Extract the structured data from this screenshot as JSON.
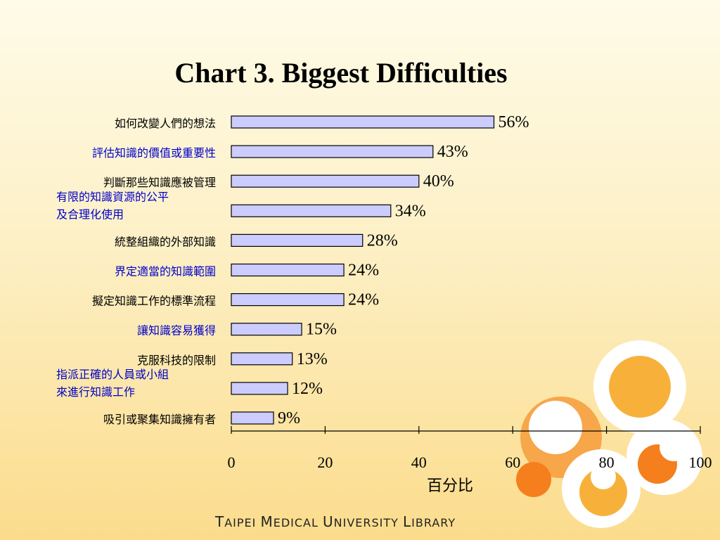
{
  "chart_data": {
    "type": "bar",
    "orientation": "horizontal",
    "title": "Chart 3. Biggest Difficulties",
    "xlabel": "百分比",
    "ylabel": "",
    "xlim": [
      0,
      100
    ],
    "xticks": [
      0,
      20,
      40,
      60,
      80,
      100
    ],
    "categories": [
      [
        "如何改變人們的想法"
      ],
      [
        "評估知識的價值或重要性"
      ],
      [
        "判斷那些知識應被管理"
      ],
      [
        "有限的知識資源的公平",
        "及合理化使用"
      ],
      [
        "統整組織的外部知識"
      ],
      [
        "界定適當的知識範圍"
      ],
      [
        "擬定知識工作的標準流程"
      ],
      [
        "讓知識容易獲得"
      ],
      [
        "克服科技的限制"
      ],
      [
        "指派正確的人員或小組",
        "來進行知識工作"
      ],
      [
        "吸引或聚集知識擁有者"
      ]
    ],
    "values": [
      56,
      43,
      40,
      34,
      28,
      24,
      24,
      15,
      13,
      12,
      9
    ],
    "value_labels": [
      "56%",
      "43%",
      "40%",
      "34%",
      "28%",
      "24%",
      "24%",
      "15%",
      "13%",
      "12%",
      "9%"
    ],
    "category_colors": [
      "#000000",
      "#0000cc",
      "#000000",
      "#0000cc",
      "#000000",
      "#0000cc",
      "#000000",
      "#0000cc",
      "#000000",
      "#0000cc",
      "#000000"
    ],
    "bar_color": "#ccccff",
    "bar_border": "#000000",
    "grid": false
  },
  "footer": {
    "t": "T",
    "aipei": "AIPEI ",
    "m": "M",
    "edical": "EDICAL ",
    "u": "U",
    "niversity": "NIVERSITY ",
    "l": "L",
    "ibrary": "IBRARY"
  },
  "decoration": {
    "circle_colors": [
      "#ffffff",
      "#f7b13a",
      "#f57f1c",
      "#f7a64a"
    ]
  }
}
